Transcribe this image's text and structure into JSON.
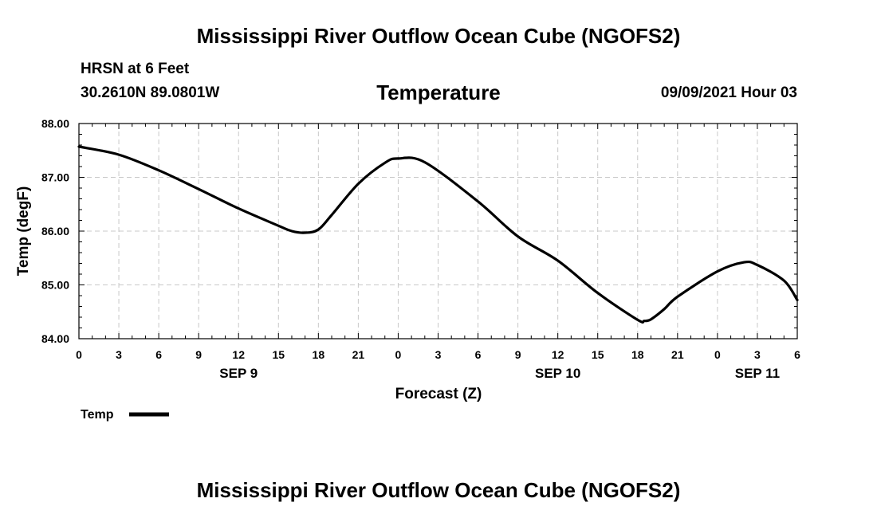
{
  "header": {
    "main_title": "Mississippi River Outflow Ocean Cube (NGOFS2)",
    "station": "HRSN at 6 Feet",
    "coordinates": "30.2610N  89.0801W",
    "timestamp": "09/09/2021 Hour 03"
  },
  "footer": {
    "title": "Mississippi River Outflow Ocean Cube (NGOFS2)"
  },
  "chart_data": {
    "type": "line",
    "title": "Temperature",
    "xlabel": "Forecast (Z)",
    "ylabel": "Temp (degF)",
    "ylim": [
      84.0,
      88.0
    ],
    "xlim_hours": [
      0,
      54
    ],
    "y_ticks": [
      "84.00",
      "85.00",
      "86.00",
      "87.00",
      "88.00"
    ],
    "x_tick_labels": [
      "0",
      "3",
      "6",
      "9",
      "12",
      "15",
      "18",
      "21",
      "0",
      "3",
      "6",
      "9",
      "12",
      "15",
      "18",
      "21",
      "0",
      "3",
      "6"
    ],
    "day_labels": [
      {
        "label": "SEP 9",
        "hour": 12
      },
      {
        "label": "SEP 10",
        "hour": 36
      },
      {
        "label": "SEP 11",
        "hour": 51
      }
    ],
    "grid": true,
    "legend": {
      "label": "Temp",
      "position": "bottom-left"
    },
    "series": [
      {
        "name": "Temp",
        "color": "#000000",
        "x": [
          0,
          3,
          6,
          9,
          12,
          15,
          16,
          17,
          18,
          19,
          21,
          23,
          24,
          26,
          30,
          33,
          36,
          39,
          42,
          42.5,
          43,
          44,
          45,
          48,
          50,
          51,
          53,
          54
        ],
        "y": [
          87.57,
          87.42,
          87.13,
          86.78,
          86.42,
          86.1,
          86.0,
          85.97,
          86.03,
          86.3,
          86.88,
          87.27,
          87.35,
          87.28,
          86.55,
          85.9,
          85.45,
          84.85,
          84.35,
          84.33,
          84.36,
          84.55,
          84.78,
          85.25,
          85.42,
          85.37,
          85.08,
          84.72
        ]
      }
    ]
  }
}
